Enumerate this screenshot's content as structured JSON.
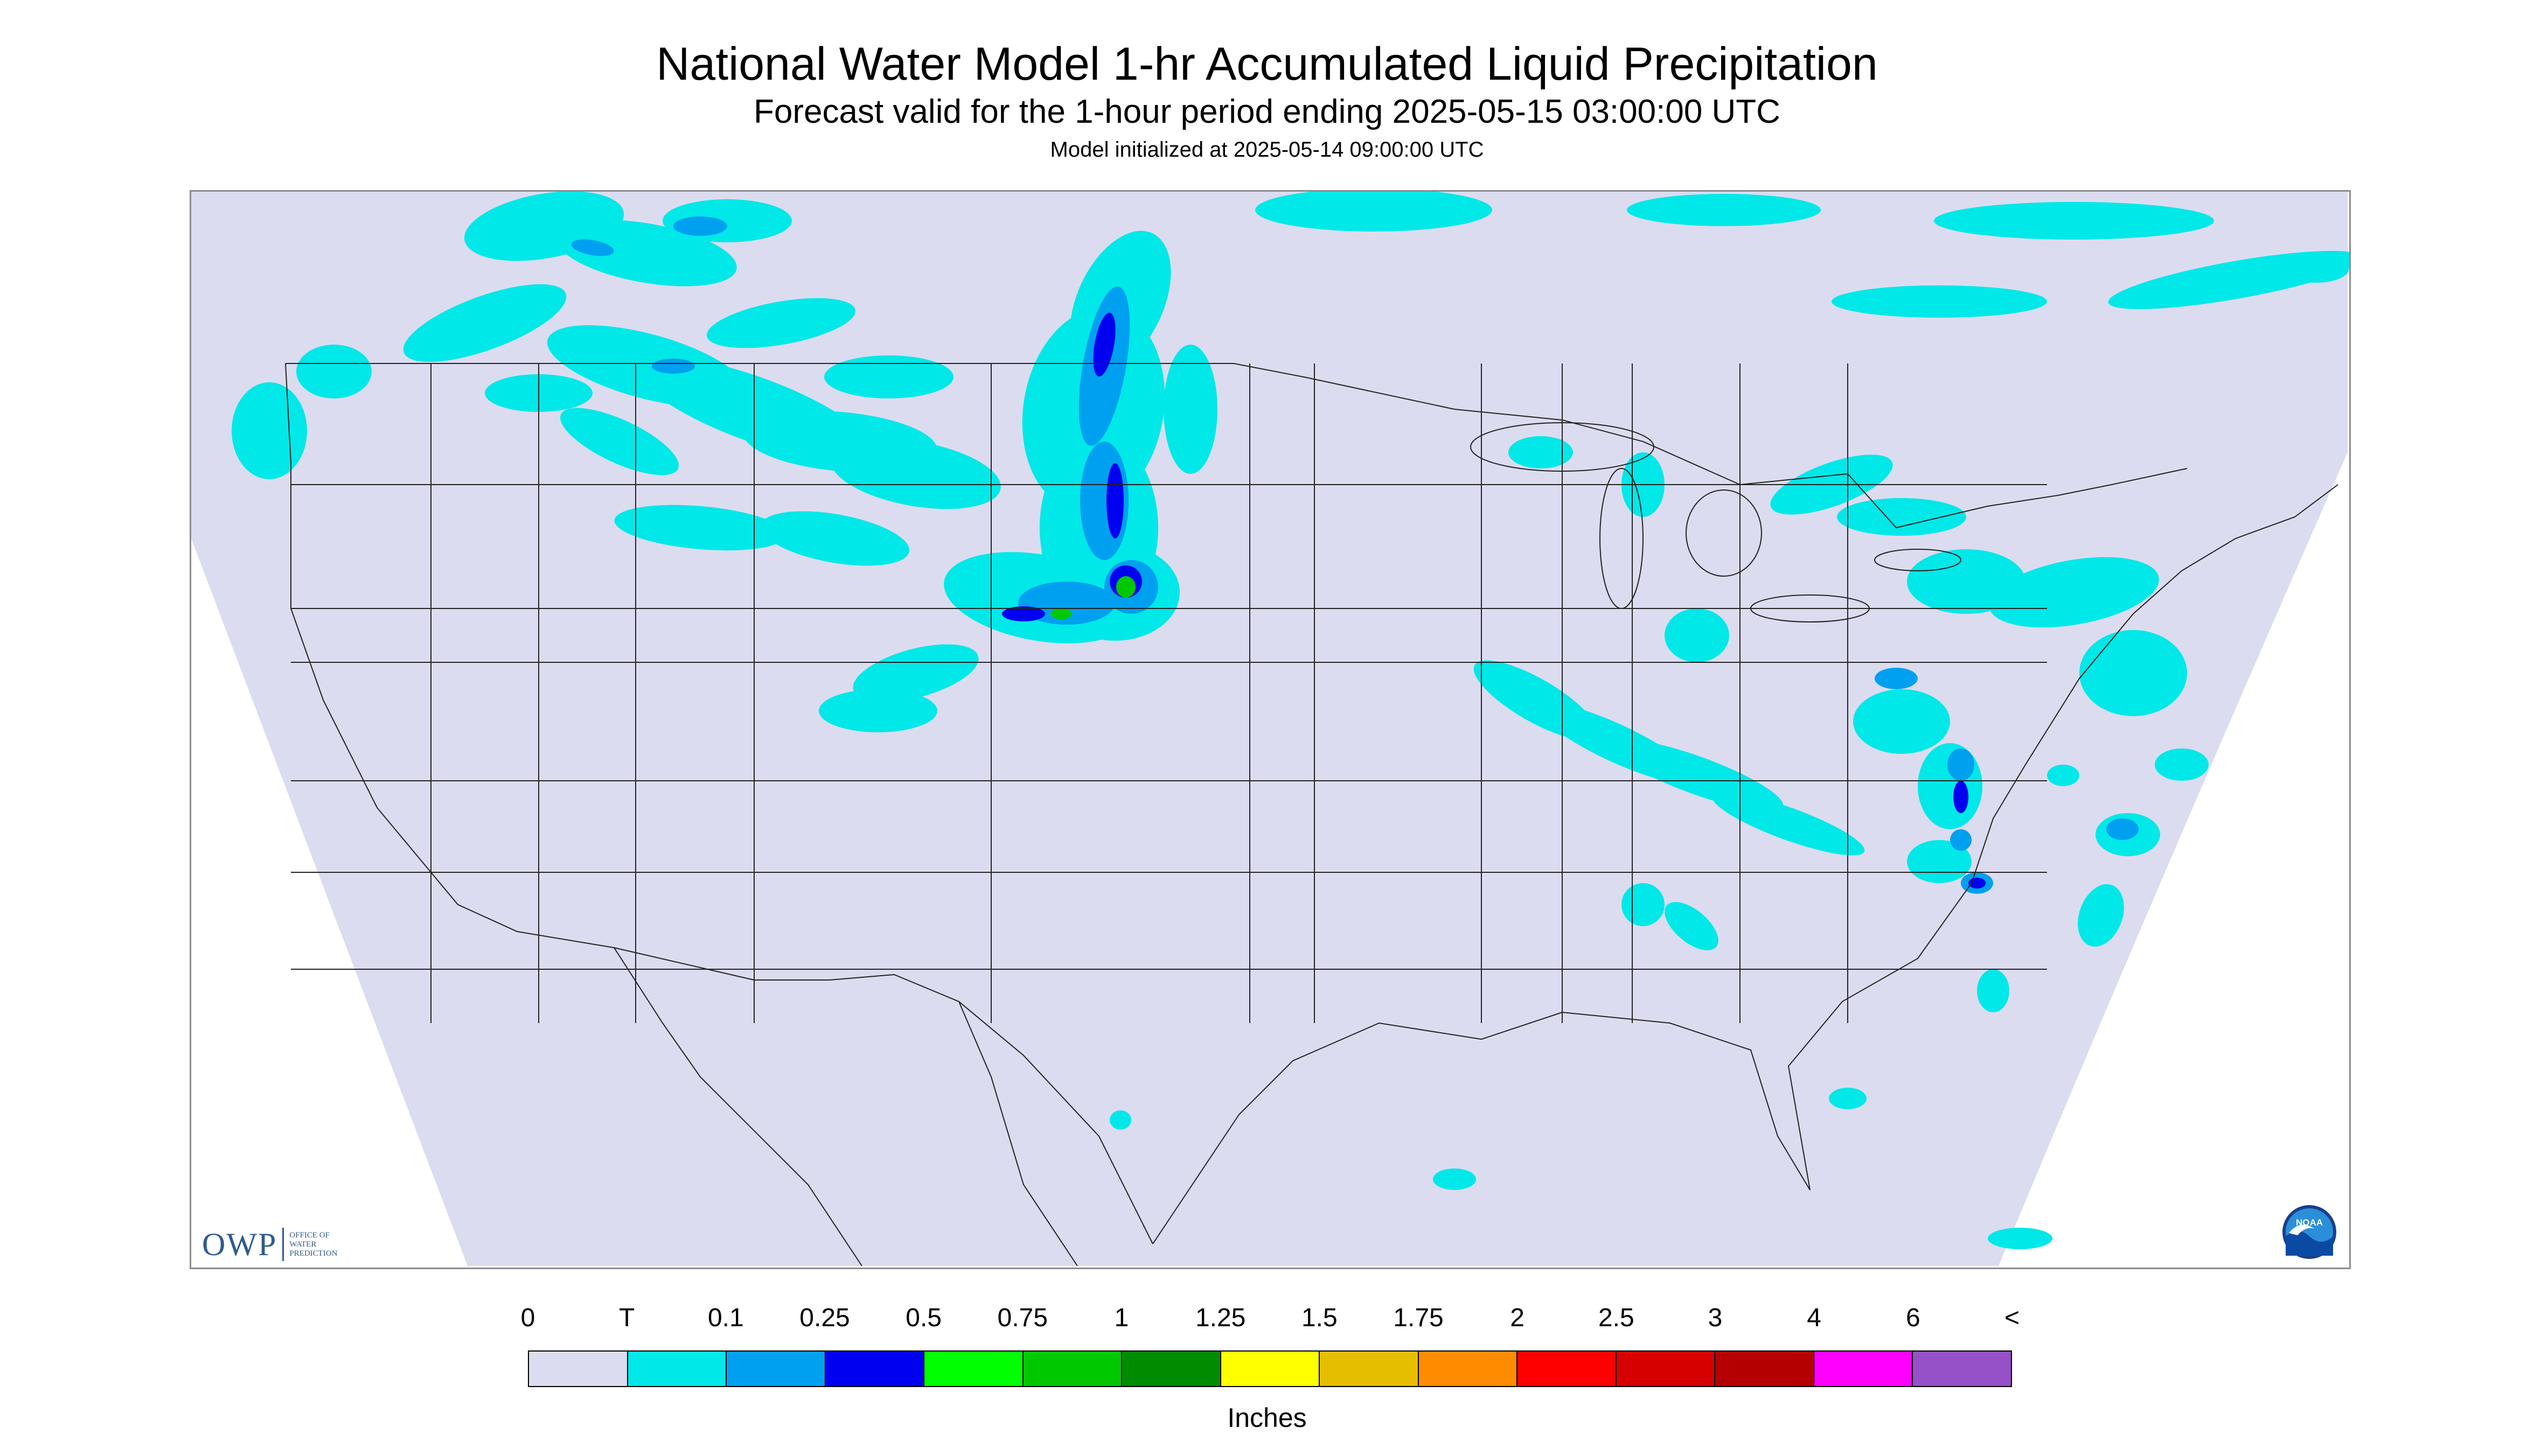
{
  "title": "National Water Model 1-hr Accumulated Liquid Precipitation",
  "subtitle": "Forecast valid for the 1-hour period ending 2025-05-15 03:00:00 UTC",
  "init_line": "Model initialized at 2025-05-14 09:00:00 UTC",
  "logo": {
    "owp_text": "OWP",
    "owp_small_lines": [
      "OFFICE OF",
      "WATER",
      "PREDICTION"
    ],
    "noaa_text": "NOAA"
  },
  "legend": {
    "labels": [
      "0",
      "T",
      "0.1",
      "0.25",
      "0.5",
      "0.75",
      "1",
      "1.25",
      "1.5",
      "1.75",
      "2",
      "2.5",
      "3",
      "4",
      "6",
      "<"
    ],
    "colors": [
      "#dcdcf0",
      "#00e8e8",
      "#00a0f0",
      "#0000f0",
      "#00ff00",
      "#00c800",
      "#008c00",
      "#ffff00",
      "#e6be00",
      "#ff8c00",
      "#ff0000",
      "#d70000",
      "#b40000",
      "#ff00ff",
      "#9650c8"
    ],
    "unit": "Inches"
  },
  "map_colors": {
    "domain": "#dcdcf0",
    "outside": "#ffffff",
    "border": "#222222",
    "trace": "#00e8e8",
    "light": "#00a0f0",
    "medium": "#0000f0",
    "green": "#00c800"
  }
}
